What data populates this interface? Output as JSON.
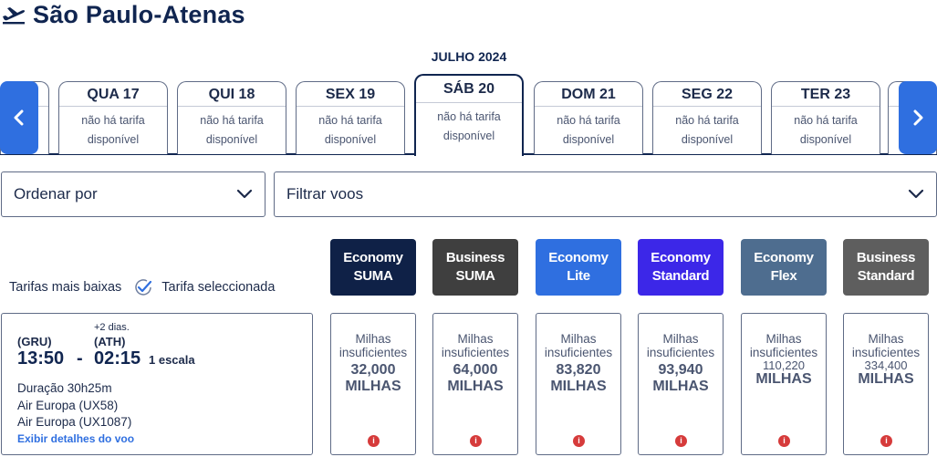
{
  "header": {
    "title": "São Paulo-Atenas",
    "icon": "plane-takeoff-icon"
  },
  "calendar": {
    "month": "JULHO 2024",
    "days": [
      {
        "name": "QUA 17",
        "text": "não há tarifa disponível"
      },
      {
        "name": "QUI 18",
        "text": "não há tarifa disponível"
      },
      {
        "name": "SEX 19",
        "text": "não há tarifa disponível"
      },
      {
        "name": "SÁB 20",
        "text": "não há tarifa disponível",
        "selected": true
      },
      {
        "name": "DOM 21",
        "text": "não há tarifa disponível"
      },
      {
        "name": "SEG 22",
        "text": "não há tarifa disponível"
      },
      {
        "name": "TER 23",
        "text": "não há tarifa disponível"
      }
    ],
    "accent": "#2f6fe0"
  },
  "filters": {
    "sort_label": "Ordenar por",
    "filter_label": "Filtrar voos"
  },
  "legend": {
    "lowest": "Tarifas mais baixas",
    "selected": "Tarifa seleccionada"
  },
  "fares": [
    {
      "line1": "Economy",
      "line2": "SUMA",
      "color": "#0f2147"
    },
    {
      "line1": "Business",
      "line2": "SUMA",
      "color": "#3f3f3f"
    },
    {
      "line1": "Economy",
      "line2": "Lite",
      "color": "#2f6fe0"
    },
    {
      "line1": "Economy",
      "line2": "Standard",
      "color": "#3c27e8"
    },
    {
      "line1": "Economy",
      "line2": "Flex",
      "color": "#4e6d8f"
    },
    {
      "line1": "Business",
      "line2": "Standard",
      "color": "#5e5e5e"
    }
  ],
  "flight": {
    "plus_days": "+2 dias.",
    "origin": "(GRU)",
    "destination": "(ATH)",
    "depart": "13:50",
    "dash": "-",
    "arrive": "02:15",
    "stops": "1 escala",
    "duration": "Duração 30h25m",
    "segments": [
      "Air Europa (UX58)",
      "Air Europa (UX1087)"
    ],
    "details_link": "Exibir detalhes do voo",
    "cells": [
      {
        "status": "Milhas insuficientes",
        "amount": "32,000",
        "unit": "MILHAS"
      },
      {
        "status": "Milhas insuficientes",
        "amount": "64,000",
        "unit": "MILHAS"
      },
      {
        "status": "Milhas insuficientes",
        "amount": "83,820",
        "unit": "MILHAS"
      },
      {
        "status": "Milhas insuficientes",
        "amount": "93,940",
        "unit": "MILHAS"
      },
      {
        "status": "Milhas insuficientes",
        "amount": "110,220",
        "unit": "MILHAS"
      },
      {
        "status": "Milhas insuficientes",
        "amount": "334,400",
        "unit": "MILHAS"
      }
    ],
    "info_glyph": "i"
  }
}
